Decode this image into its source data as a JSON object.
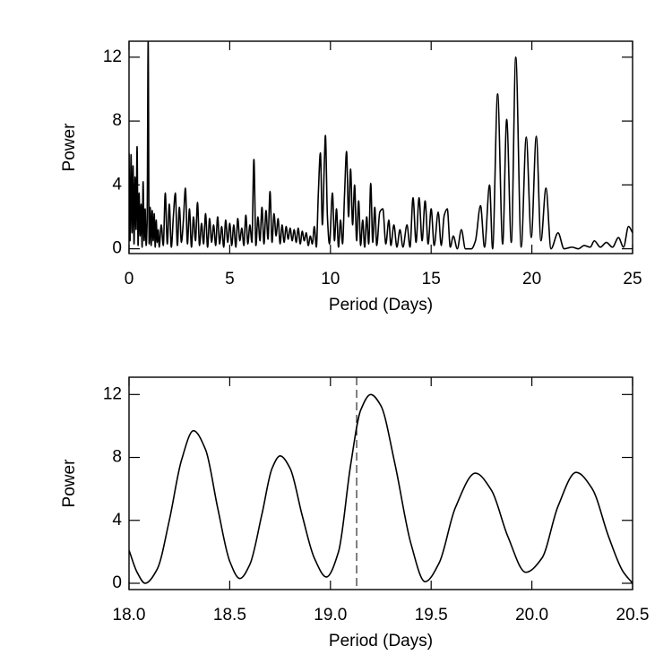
{
  "chart_data": [
    {
      "type": "line",
      "xlabel": "Period (Days)",
      "ylabel": "Power",
      "xlim": [
        0,
        25
      ],
      "ylim": [
        -0.3,
        13
      ],
      "xticks": [
        0,
        5,
        10,
        15,
        20,
        25
      ],
      "yticks": [
        0,
        4,
        8,
        12
      ],
      "x": [
        0,
        0.05,
        0.1,
        0.15,
        0.2,
        0.25,
        0.3,
        0.35,
        0.4,
        0.45,
        0.5,
        0.55,
        0.6,
        0.65,
        0.7,
        0.75,
        0.8,
        0.85,
        0.9,
        0.95,
        1.0,
        1.05,
        1.1,
        1.15,
        1.2,
        1.25,
        1.3,
        1.35,
        1.4,
        1.45,
        1.5,
        1.6,
        1.7,
        1.8,
        1.9,
        2.0,
        2.1,
        2.2,
        2.3,
        2.4,
        2.5,
        2.6,
        2.7,
        2.8,
        2.9,
        3.0,
        3.1,
        3.2,
        3.3,
        3.4,
        3.5,
        3.6,
        3.7,
        3.8,
        3.9,
        4.0,
        4.1,
        4.2,
        4.3,
        4.4,
        4.5,
        4.6,
        4.7,
        4.8,
        4.9,
        5.0,
        5.1,
        5.2,
        5.3,
        5.4,
        5.5,
        5.6,
        5.7,
        5.8,
        5.9,
        6.0,
        6.1,
        6.2,
        6.3,
        6.4,
        6.5,
        6.6,
        6.7,
        6.8,
        6.9,
        7.0,
        7.1,
        7.2,
        7.3,
        7.4,
        7.5,
        7.6,
        7.7,
        7.8,
        7.9,
        8.0,
        8.1,
        8.2,
        8.3,
        8.4,
        8.5,
        8.6,
        8.7,
        8.8,
        8.9,
        9.0,
        9.1,
        9.2,
        9.3,
        9.4,
        9.5,
        9.6,
        9.7,
        9.75,
        9.85,
        9.95,
        10.1,
        10.2,
        10.3,
        10.4,
        10.5,
        10.6,
        10.7,
        10.8,
        10.9,
        11.0,
        11.1,
        11.2,
        11.3,
        11.4,
        11.5,
        11.6,
        11.7,
        11.8,
        11.9,
        12.0,
        12.1,
        12.2,
        12.3,
        12.45,
        12.6,
        12.75,
        12.9,
        13.0,
        13.15,
        13.3,
        13.45,
        13.6,
        13.8,
        13.95,
        14.1,
        14.25,
        14.4,
        14.55,
        14.7,
        14.85,
        15.0,
        15.15,
        15.35,
        15.5,
        15.65,
        15.8,
        15.95,
        16.1,
        16.3,
        16.5,
        16.7,
        17.0,
        17.2,
        17.45,
        17.65,
        17.9,
        18.05,
        18.3,
        18.55,
        18.75,
        18.98,
        19.2,
        19.47,
        19.72,
        19.97,
        20.22,
        20.45,
        20.7,
        20.95,
        21.3,
        21.6,
        22.0,
        22.3,
        22.6,
        22.9,
        23.1,
        23.4,
        23.7,
        24.0,
        24.3,
        24.55,
        24.8,
        25.0
      ],
      "series": [
        {
          "color": "#000000",
          "values": [
            6.0,
            0.5,
            5.9,
            1.0,
            5.2,
            0.3,
            4.5,
            1.2,
            6.4,
            0.2,
            3.5,
            0.8,
            2.8,
            0.1,
            4.2,
            0.5,
            2.5,
            0.2,
            1.8,
            13.0,
            0.3,
            2.6,
            0.2,
            2.4,
            0.5,
            2.2,
            0.1,
            1.8,
            0.4,
            1.2,
            0.1,
            1.5,
            0.2,
            3.5,
            0.3,
            2.8,
            0.1,
            2.0,
            3.5,
            0.2,
            2.6,
            0.4,
            1.8,
            3.8,
            0.3,
            2.5,
            0.1,
            2.0,
            0.5,
            2.9,
            0.2,
            1.6,
            0.3,
            2.2,
            0.1,
            1.9,
            0.4,
            1.5,
            0.2,
            2.0,
            0.3,
            1.4,
            0.1,
            1.8,
            0.4,
            1.6,
            0.2,
            1.5,
            0.1,
            1.9,
            0.5,
            1.3,
            0.2,
            2.1,
            0.3,
            1.5,
            0.4,
            5.6,
            0.2,
            2.0,
            0.5,
            2.6,
            0.3,
            2.4,
            0.6,
            3.6,
            0.4,
            2.2,
            0.8,
            1.9,
            0.3,
            1.5,
            0.4,
            1.4,
            0.6,
            1.3,
            0.5,
            1.2,
            0.4,
            1.3,
            0.3,
            1.1,
            0.5,
            1.0,
            0.2,
            0.8,
            0.3,
            1.4,
            0.1,
            3.5,
            6.0,
            1.5,
            5.5,
            7.1,
            2.0,
            0.3,
            3.5,
            0.5,
            2.5,
            0.1,
            1.8,
            0.3,
            3.4,
            6.1,
            2.0,
            5.0,
            1.5,
            4.0,
            0.5,
            3.0,
            0.2,
            1.8,
            0.1,
            2.0,
            0.3,
            4.1,
            0.4,
            2.6,
            0.2,
            2.3,
            2.5,
            0.3,
            1.8,
            0.2,
            1.5,
            0.1,
            1.2,
            0.1,
            1.5,
            0.1,
            3.2,
            0.4,
            3.2,
            0.5,
            3.0,
            0.3,
            2.5,
            0.2,
            2.3,
            0.2,
            2.1,
            2.5,
            0.1,
            0.8,
            0.0,
            1.2,
            0.0,
            0.0,
            0.5,
            2.7,
            0.1,
            4.0,
            0.0,
            9.7,
            0.3,
            8.1,
            0.4,
            12.0,
            0.1,
            7.0,
            0.7,
            7.05,
            0.5,
            3.8,
            0.0,
            1.0,
            0.0,
            0.1,
            0.0,
            0.2,
            0.1,
            0.5,
            0.1,
            0.4,
            0.1,
            0.7,
            0.1,
            1.4,
            1.0
          ]
        }
      ]
    },
    {
      "type": "line",
      "xlabel": "Period (Days)",
      "ylabel": "Power",
      "xlim": [
        18.0,
        20.5
      ],
      "ylim": [
        -0.4,
        13.1
      ],
      "xticks": [
        {
          "value": 18,
          "label": "18.0"
        },
        18.5,
        {
          "value": 19,
          "label": "19.0"
        },
        19.5,
        {
          "value": 20,
          "label": "20.0"
        },
        20.5
      ],
      "yticks": [
        0,
        4,
        8,
        12
      ],
      "x": [
        18.0,
        18.04,
        18.08,
        18.14,
        18.2,
        18.26,
        18.32,
        18.38,
        18.44,
        18.5,
        18.55,
        18.6,
        18.66,
        18.71,
        18.75,
        18.8,
        18.86,
        18.92,
        18.98,
        19.04,
        19.1,
        19.15,
        19.2,
        19.25,
        19.32,
        19.4,
        19.47,
        19.54,
        19.62,
        19.72,
        19.8,
        19.88,
        19.97,
        20.05,
        20.13,
        20.22,
        20.3,
        20.38,
        20.45,
        20.5
      ],
      "series": [
        {
          "color": "#000000",
          "values": [
            2.1,
            0.7,
            0.0,
            0.9,
            4.0,
            7.8,
            9.7,
            8.5,
            4.8,
            1.4,
            0.3,
            1.2,
            4.4,
            7.3,
            8.1,
            7.3,
            4.3,
            1.6,
            0.4,
            2.0,
            7.5,
            11.0,
            12.0,
            11.3,
            7.6,
            2.5,
            0.1,
            1.3,
            4.8,
            7.0,
            5.9,
            3.0,
            0.7,
            1.6,
            4.9,
            7.05,
            6.0,
            3.0,
            0.8,
            0.0
          ]
        }
      ],
      "reference_line": {
        "x": 19.13,
        "style": "dashed"
      }
    }
  ]
}
